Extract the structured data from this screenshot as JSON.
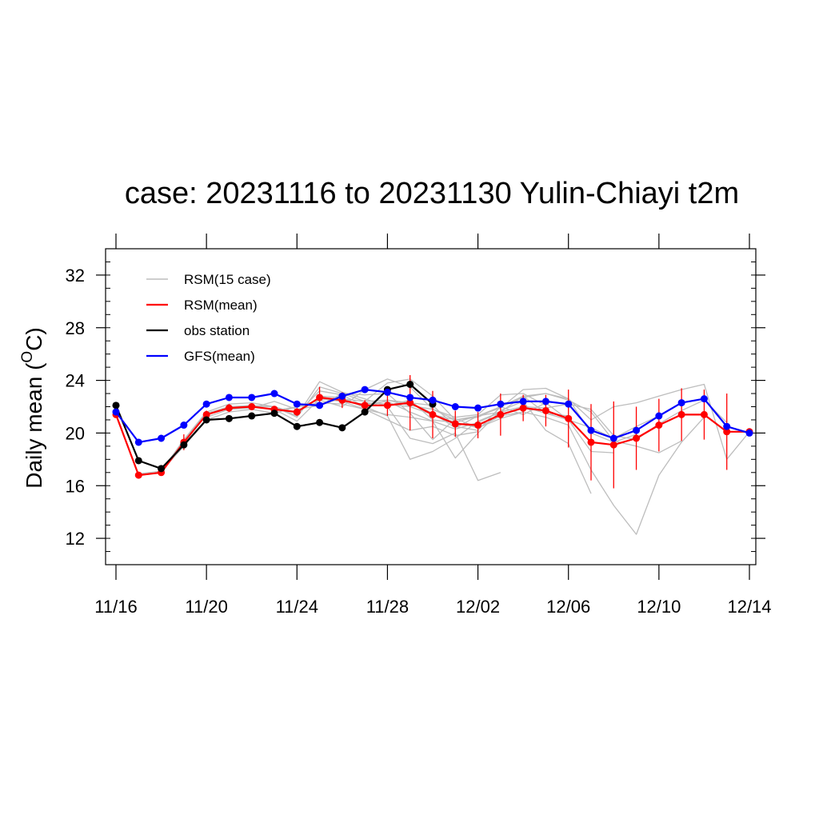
{
  "chart_data": {
    "type": "line",
    "title": "case: 20231116 to 20231130 Yulin-Chiayi t2m",
    "ylabel_parts": [
      "Daily mean (",
      "O",
      "C)"
    ],
    "x": [
      "11/16",
      "11/17",
      "11/18",
      "11/19",
      "11/20",
      "11/21",
      "11/22",
      "11/23",
      "11/24",
      "11/25",
      "11/26",
      "11/27",
      "11/28",
      "11/29",
      "11/30",
      "12/01",
      "12/02",
      "12/03",
      "12/04",
      "12/05",
      "12/06",
      "12/07",
      "12/08",
      "12/09",
      "12/10",
      "12/11",
      "12/12",
      "12/13",
      "12/14"
    ],
    "xticks": [
      "11/16",
      "11/20",
      "11/24",
      "11/28",
      "12/02",
      "12/06",
      "12/10",
      "12/14"
    ],
    "ylim": [
      10,
      34
    ],
    "yticks": [
      12,
      16,
      20,
      24,
      28,
      32
    ],
    "legend": "upper left",
    "series": [
      {
        "name": "RSM(15 case)",
        "color": "#bdbdbd",
        "markers": false,
        "members": [
          [
            21.4,
            16.8,
            17.0,
            19.3,
            21.4,
            21.9,
            22.0,
            21.8,
            21.6,
            22.7,
            22.5,
            22.1,
            22.1,
            22.3,
            21.4,
            null,
            null,
            null,
            null,
            null,
            null,
            null,
            null,
            null,
            null,
            null,
            null,
            null,
            null
          ],
          [
            null,
            16.9,
            17.1,
            19.5,
            21.6,
            22.2,
            22.3,
            22.0,
            21.2,
            23.5,
            23.0,
            22.4,
            23.8,
            24.1,
            22.8,
            21.0,
            null,
            null,
            null,
            null,
            null,
            null,
            null,
            null,
            null,
            null,
            null,
            null,
            null
          ],
          [
            null,
            null,
            17.1,
            19.0,
            21.0,
            21.6,
            21.8,
            21.5,
            22.0,
            22.3,
            22.2,
            21.8,
            21.0,
            20.2,
            20.5,
            19.8,
            20.1,
            null,
            null,
            null,
            null,
            null,
            null,
            null,
            null,
            null,
            null,
            null,
            null
          ],
          [
            null,
            null,
            null,
            19.4,
            21.5,
            22.0,
            22.1,
            22.0,
            21.3,
            23.9,
            23.1,
            22.6,
            22.0,
            19.6,
            19.2,
            20.0,
            16.4,
            17.0,
            null,
            null,
            null,
            null,
            null,
            null,
            null,
            null,
            null,
            null,
            null
          ],
          [
            null,
            null,
            null,
            null,
            21.2,
            21.8,
            21.9,
            22.4,
            21.8,
            22.1,
            23.0,
            22.9,
            23.0,
            21.5,
            19.5,
            21.1,
            20.4,
            21.3,
            21.6,
            null,
            null,
            null,
            null,
            null,
            null,
            null,
            null,
            null,
            null
          ],
          [
            null,
            null,
            null,
            null,
            null,
            21.9,
            22.1,
            21.7,
            22.0,
            22.5,
            22.0,
            23.3,
            24.1,
            23.5,
            21.8,
            21.2,
            21.4,
            22.9,
            23.0,
            22.1,
            null,
            null,
            null,
            null,
            null,
            null,
            null,
            null,
            null
          ],
          [
            null,
            null,
            null,
            null,
            null,
            null,
            22.0,
            22.0,
            21.5,
            23.2,
            22.9,
            22.0,
            21.3,
            18.0,
            18.6,
            19.6,
            20.9,
            21.6,
            22.8,
            21.5,
            21.3,
            null,
            null,
            null,
            null,
            null,
            null,
            null,
            null
          ],
          [
            null,
            null,
            null,
            null,
            null,
            null,
            null,
            21.8,
            20.9,
            22.6,
            22.4,
            21.8,
            21.4,
            21.2,
            20.9,
            18.1,
            20.0,
            21.7,
            22.4,
            20.2,
            19.2,
            15.4,
            null,
            null,
            null,
            null,
            null,
            null,
            null
          ],
          [
            null,
            null,
            null,
            null,
            null,
            null,
            null,
            null,
            22.0,
            22.2,
            22.6,
            22.4,
            22.5,
            22.3,
            22.1,
            20.5,
            20.2,
            22.0,
            21.4,
            22.3,
            21.0,
            18.6,
            18.5,
            null,
            null,
            null,
            null,
            null,
            null
          ],
          [
            null,
            null,
            null,
            null,
            null,
            null,
            null,
            null,
            null,
            22.8,
            22.7,
            21.9,
            22.5,
            22.1,
            21.8,
            21.0,
            21.3,
            21.9,
            23.3,
            23.4,
            22.6,
            20.0,
            19.3,
            19.9,
            null,
            null,
            null,
            null,
            null
          ],
          [
            null,
            null,
            null,
            null,
            null,
            null,
            null,
            null,
            null,
            null,
            22.4,
            22.2,
            22.4,
            21.6,
            20.9,
            20.3,
            20.8,
            21.6,
            22.0,
            21.5,
            21.0,
            20.4,
            19.6,
            20.5,
            21.3,
            null,
            null,
            null,
            null
          ],
          [
            null,
            null,
            null,
            null,
            null,
            null,
            null,
            null,
            null,
            null,
            null,
            22.3,
            22.2,
            22.0,
            21.4,
            20.8,
            21.3,
            22.0,
            22.8,
            23.0,
            22.5,
            21.6,
            19.4,
            19.0,
            18.5,
            19.4,
            null,
            null,
            null
          ],
          [
            null,
            null,
            null,
            null,
            null,
            null,
            null,
            null,
            null,
            null,
            null,
            null,
            22.1,
            22.5,
            21.0,
            20.8,
            20.4,
            21.1,
            21.6,
            21.2,
            20.6,
            17.2,
            14.5,
            12.3,
            16.8,
            19.3,
            21.2,
            null,
            null
          ],
          [
            null,
            null,
            null,
            null,
            null,
            null,
            null,
            null,
            null,
            null,
            null,
            null,
            null,
            22.3,
            21.5,
            20.4,
            21.3,
            21.6,
            22.0,
            21.9,
            22.2,
            21.8,
            19.8,
            19.5,
            20.7,
            21.7,
            22.5,
            20.8,
            null
          ],
          [
            null,
            null,
            null,
            null,
            null,
            null,
            null,
            null,
            null,
            null,
            null,
            null,
            null,
            null,
            21.4,
            21.0,
            21.2,
            22.0,
            22.7,
            23.0,
            22.6,
            21.0,
            22.0,
            22.3,
            22.8,
            23.3,
            23.7,
            18.0,
            20.1
          ]
        ]
      },
      {
        "name": "RSM(mean)",
        "color": "#ff0000",
        "markers": true,
        "values": [
          21.4,
          16.8,
          17.0,
          19.3,
          21.4,
          21.9,
          22.0,
          21.8,
          21.6,
          22.7,
          22.5,
          22.1,
          22.1,
          22.3,
          21.4,
          20.7,
          20.6,
          21.4,
          21.9,
          21.7,
          21.1,
          19.3,
          19.1,
          19.6,
          20.6,
          21.4,
          21.4,
          20.1,
          20.1
        ],
        "errors": [
          0.1,
          0.1,
          0.1,
          0.6,
          0.3,
          0.3,
          0.2,
          0.2,
          0.3,
          0.8,
          0.6,
          0.4,
          0.8,
          2.1,
          1.8,
          1.0,
          1.0,
          1.6,
          1.0,
          1.2,
          2.2,
          2.9,
          3.3,
          2.4,
          2.0,
          2.0,
          1.9,
          2.9,
          0.2
        ]
      },
      {
        "name": "obs station",
        "color": "#000000",
        "markers": true,
        "values": [
          22.1,
          17.9,
          17.3,
          19.1,
          21.0,
          21.1,
          21.3,
          21.5,
          20.5,
          20.8,
          20.4,
          21.6,
          23.3,
          23.7,
          22.2,
          null,
          null,
          null,
          null,
          null,
          null,
          null,
          null,
          null,
          null,
          null,
          null,
          null,
          null
        ]
      },
      {
        "name": "GFS(mean)",
        "color": "#0000ff",
        "markers": true,
        "values": [
          21.6,
          19.3,
          19.6,
          20.6,
          22.2,
          22.7,
          22.7,
          23.0,
          22.2,
          22.1,
          22.8,
          23.3,
          23.1,
          22.7,
          22.5,
          22.0,
          21.9,
          22.2,
          22.4,
          22.4,
          22.2,
          20.2,
          19.6,
          20.2,
          21.3,
          22.3,
          22.6,
          20.5,
          20.0
        ]
      }
    ]
  }
}
